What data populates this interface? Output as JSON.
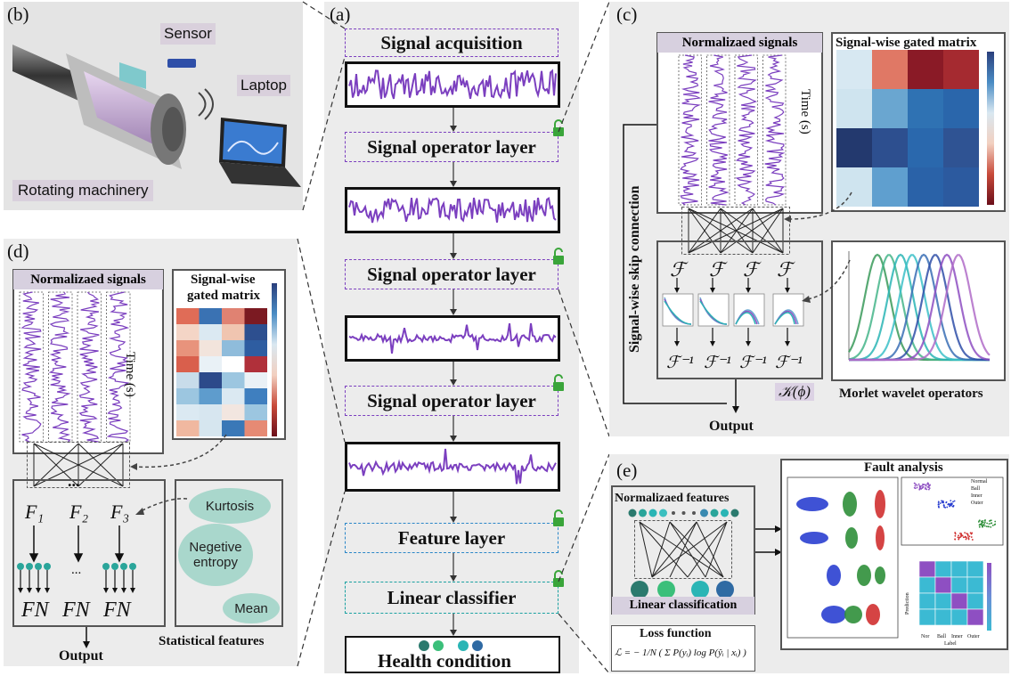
{
  "panel_b": {
    "tag": "(b)",
    "sensor": "Sensor",
    "laptop": "Laptop",
    "machine": "Rotating machinery"
  },
  "panel_a": {
    "tag": "(a)",
    "acquisition": "Signal acquisition",
    "operator1": "Signal operator layer",
    "operator2": "Signal operator layer",
    "operator3": "Signal operator layer",
    "feature": "Feature layer",
    "classifier": "Linear classifier",
    "health": "Health condition"
  },
  "panel_c": {
    "tag": "(c)",
    "normalized": "Normalizaed signals",
    "gated": "Signal-wise gated matrix",
    "time": "Time (s)",
    "skip": "Signal-wise skip connection",
    "f": "ℱ",
    "finv": "ℱ⁻¹",
    "kernel": "𝒦(ϕ)",
    "morlet": "Morlet wavelet operators",
    "output": "Output"
  },
  "panel_d": {
    "tag": "(d)",
    "normalized": "Normalizaed signals",
    "gated1": "Signal-wise",
    "gated2": "gated matrix",
    "time": "Time (s)",
    "f1": "F₁",
    "f2": "F₂",
    "f3": "F₃",
    "dots": "...",
    "fn": "FN",
    "kurtosis": "Kurtosis",
    "negentropy": "Negetive entropy",
    "mean": "Mean",
    "stat": "Statistical features",
    "output": "Output"
  },
  "panel_e": {
    "tag": "(e)",
    "normfeat": "Normalizaed features",
    "linclass": "Linear classification",
    "loss": "Loss function",
    "formula": "ℒ = − 1/N ( Σ P(yᵢ) log P(ŷᵢ | xᵢ) )",
    "fault": "Fault analysis",
    "legend": [
      "Normal",
      "Ball",
      "Inner",
      "Outer"
    ],
    "cm_labels": [
      "Nor",
      "Ball",
      "Inner",
      "Outer"
    ],
    "cm_xlabel": "Label",
    "cm_ylabel": "Prediction"
  },
  "colors": {
    "purple": "#7b3fbf",
    "teal": "#1aa1a1",
    "blue": "#2a86c8",
    "green": "#3aa53a",
    "panel": "#ececec"
  }
}
